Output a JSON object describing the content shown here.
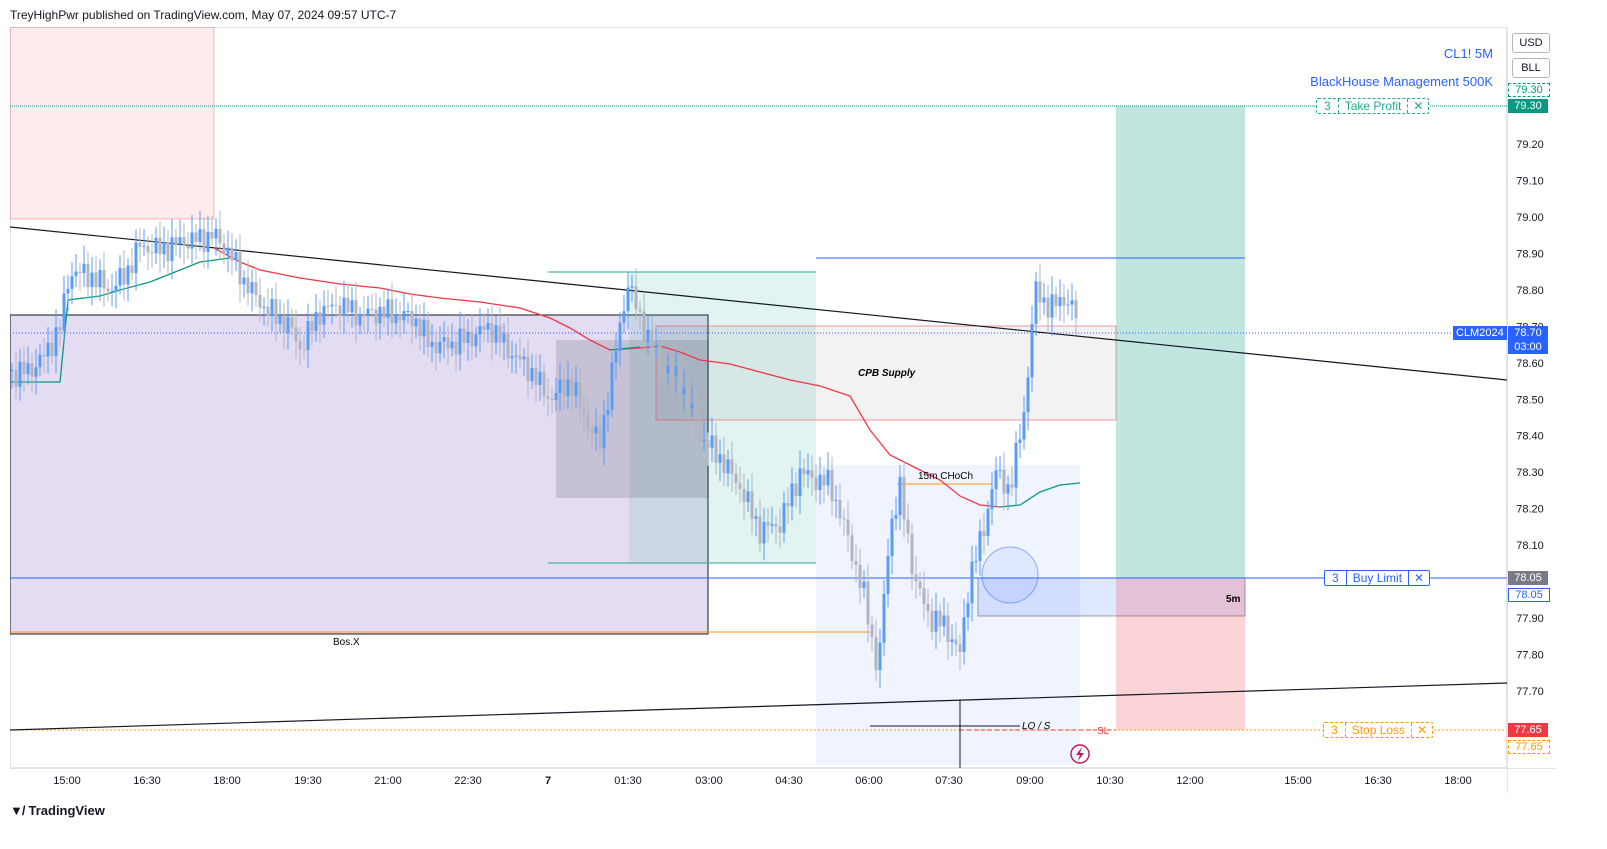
{
  "header": {
    "published_text": "TreyHighPwr published on TradingView.com, May 07, 2024 09:57 UTC-7"
  },
  "symbol": {
    "ticker_line": "CL1! 5M",
    "account_line": "BlackHouse Management 500K"
  },
  "axis_controls": {
    "currency": "USD",
    "unit": "BLL"
  },
  "chart_data": {
    "type": "candlestick",
    "y_axis": {
      "ticks": [
        79.2,
        79.1,
        79.0,
        78.9,
        78.8,
        78.7,
        78.6,
        78.5,
        78.4,
        78.3,
        78.2,
        78.1,
        77.9,
        77.8,
        77.7
      ],
      "ylim": [
        77.58,
        79.5
      ]
    },
    "x_axis": {
      "ticks": [
        "15:00",
        "16:30",
        "18:00",
        "19:30",
        "21:00",
        "22:30",
        "7",
        "01:30",
        "03:00",
        "04:30",
        "06:00",
        "07:30",
        "09:00",
        "10:30",
        "12:00",
        "15:00",
        "16:30",
        "18:00"
      ]
    },
    "price_labels": {
      "take_profit": "79.30",
      "take_profit_tag": "79.30",
      "current_symbol": "CLM2024",
      "current_price": "78.70",
      "countdown": "03:00",
      "buy_limit": "78.05",
      "buy_limit_tag": "78.05",
      "stop_loss": "77.65",
      "stop_loss_tag": "77.65"
    },
    "orders": [
      {
        "qty": "3",
        "label": "Take Profit",
        "price": 79.3,
        "color": "#22ab94"
      },
      {
        "qty": "3",
        "label": "Buy Limit",
        "price": 78.05,
        "color": "#2962ff"
      },
      {
        "qty": "3",
        "label": "Stop Loss",
        "price": 77.65,
        "color": "#ff9800"
      }
    ],
    "annotations": {
      "supply": "CPB Supply",
      "choch": "15m CHoCh",
      "bos": "Bos.X",
      "five_min": "5m",
      "lo_s": "LO / S",
      "sl": "SL"
    },
    "colors": {
      "up": "#5b9cf6",
      "down": "#b2b5be",
      "ema_red": "#f23645",
      "ema_green": "#089981"
    }
  },
  "footer": {
    "brand": "TradingView"
  }
}
